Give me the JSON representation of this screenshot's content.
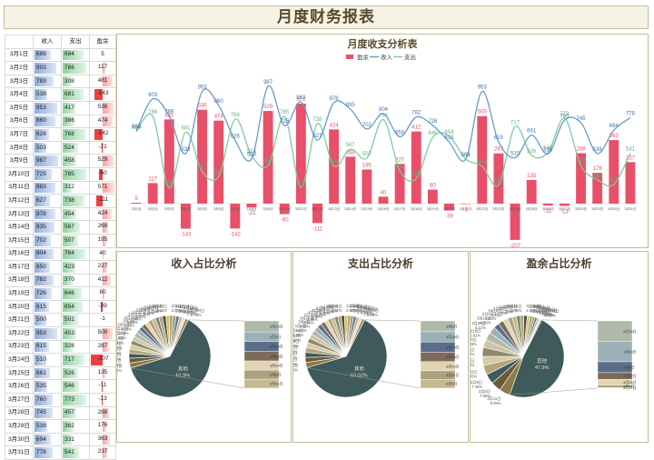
{
  "page_title": "月度财务报表",
  "table": {
    "headers": [
      "",
      "收入",
      "支出",
      "盈余"
    ],
    "rows": [
      {
        "date": "3月1日",
        "income": 689,
        "expense": 684,
        "net": 5
      },
      {
        "date": "3月2日",
        "income": 903,
        "expense": 786,
        "net": 117
      },
      {
        "date": "3月3日",
        "income": 789,
        "expense": 308,
        "net": 481
      },
      {
        "date": "3月4日",
        "income": 538,
        "expense": 681,
        "net": -143
      },
      {
        "date": "3月5日",
        "income": 953,
        "expense": 417,
        "net": 536
      },
      {
        "date": "3月6日",
        "income": 860,
        "expense": 386,
        "net": 474
      },
      {
        "date": "3月7日",
        "income": 626,
        "expense": 768,
        "net": -142
      },
      {
        "date": "3月8日",
        "income": 503,
        "expense": 524,
        "net": -21
      },
      {
        "date": "3月9日",
        "income": 987,
        "expense": 458,
        "net": 529
      },
      {
        "date": "3月10日",
        "income": 725,
        "expense": 785,
        "net": -60
      },
      {
        "date": "3月11日",
        "income": 883,
        "expense": 312,
        "net": 571
      },
      {
        "date": "3月12日",
        "income": 627,
        "expense": 738,
        "net": -111
      },
      {
        "date": "3月13日",
        "income": 878,
        "expense": 454,
        "net": 424
      },
      {
        "date": "3月14日",
        "income": 835,
        "expense": 567,
        "net": 268
      },
      {
        "date": "3月15日",
        "income": 702,
        "expense": 507,
        "net": 195
      },
      {
        "date": "3月16日",
        "income": 804,
        "expense": 764,
        "net": 40
      },
      {
        "date": "3月17日",
        "income": 650,
        "expense": 423,
        "net": 227
      },
      {
        "date": "3月18日",
        "income": 782,
        "expense": 370,
        "net": 412
      },
      {
        "date": "3月19日",
        "income": 726,
        "expense": 646,
        "net": 80
      },
      {
        "date": "3月20日",
        "income": 615,
        "expense": 654,
        "net": -39
      },
      {
        "date": "3月21日",
        "income": 500,
        "expense": 501,
        "net": -1
      },
      {
        "date": "3月22日",
        "income": 953,
        "expense": 453,
        "net": 500
      },
      {
        "date": "3月23日",
        "income": 615,
        "expense": 328,
        "net": 287
      },
      {
        "date": "3月24日",
        "income": 510,
        "expense": 717,
        "net": -207
      },
      {
        "date": "3月25日",
        "income": 661,
        "expense": 526,
        "net": 135
      },
      {
        "date": "3月26日",
        "income": 535,
        "expense": 546,
        "net": -11
      },
      {
        "date": "3月27日",
        "income": 760,
        "expense": 773,
        "net": -13
      },
      {
        "date": "3月28日",
        "income": 745,
        "expense": 457,
        "net": 288
      },
      {
        "date": "3月29日",
        "income": 538,
        "expense": 362,
        "net": 176
      },
      {
        "date": "3月30日",
        "income": 694,
        "expense": 331,
        "net": 363
      },
      {
        "date": "3月31日",
        "income": 778,
        "expense": 541,
        "net": 237
      }
    ]
  },
  "chart_data": [
    {
      "type": "bar",
      "title": "月度收支分析表",
      "legend": [
        "盈余",
        "收入",
        "支出"
      ],
      "legend_position": "top",
      "colors": {
        "net": "#e8506a",
        "income": "#6b9bc8",
        "expense": "#7fcc9f"
      },
      "categories": [
        "3月1日",
        "3月2日",
        "3月3日",
        "3月4日",
        "3月5日",
        "3月6日",
        "3月7日",
        "3月8日",
        "3月9日",
        "3月10日",
        "3月11日",
        "3月12日",
        "3月13日",
        "3月14日",
        "3月15日",
        "3月16日",
        "3月17日",
        "3月18日",
        "3月19日",
        "3月20日",
        "3月21日",
        "3月22日",
        "3月23日",
        "3月24日",
        "3月25日",
        "3月26日",
        "3月27日",
        "3月28日",
        "3月29日",
        "3月30日",
        "3月31日"
      ],
      "series": [
        {
          "name": "盈余",
          "type": "bar",
          "values": [
            5,
            117,
            481,
            -143,
            536,
            474,
            -142,
            -21,
            529,
            -60,
            571,
            -111,
            424,
            268,
            195,
            40,
            227,
            412,
            80,
            -39,
            -1,
            500,
            287,
            -207,
            135,
            -11,
            -13,
            288,
            176,
            363,
            237
          ]
        },
        {
          "name": "收入",
          "type": "line",
          "values": [
            689,
            903,
            789,
            538,
            953,
            860,
            626,
            503,
            987,
            725,
            883,
            627,
            878,
            835,
            702,
            804,
            650,
            782,
            726,
            615,
            500,
            953,
            615,
            510,
            661,
            535,
            760,
            745,
            538,
            694,
            778
          ]
        },
        {
          "name": "支出",
          "type": "line",
          "values": [
            684,
            786,
            308,
            681,
            417,
            386,
            768,
            524,
            458,
            785,
            312,
            738,
            454,
            567,
            507,
            764,
            423,
            370,
            646,
            654,
            501,
            453,
            328,
            717,
            526,
            546,
            773,
            457,
            362,
            331,
            541
          ]
        }
      ]
    },
    {
      "type": "pie",
      "title": "收入占比分析",
      "largest_slice_label": "其他",
      "largest_slice_percent": "62.9%"
    },
    {
      "type": "pie",
      "title": "支出占比分析",
      "largest_slice_label": "其他",
      "largest_slice_percent": "63.02%"
    },
    {
      "type": "pie",
      "title": "盈余占比分析",
      "largest_slice_label": "其他",
      "largest_slice_percent": "47.9%"
    }
  ],
  "pie_palette": [
    "#c4b04a",
    "#d9c27a",
    "#a8956a",
    "#8b7a4a",
    "#6e5a3a",
    "#3e5a5a",
    "#b3a57a",
    "#d6caa0",
    "#8e8a6a",
    "#cfc4a8",
    "#b0b8a8",
    "#9cb0b8",
    "#5a6e8a",
    "#7d6a5a",
    "#e0d5b0",
    "#ada080",
    "#c8b890",
    "#7c8c6c",
    "#a7a58a",
    "#5c4a3a",
    "#d0c070",
    "#b8a060",
    "#90a090",
    "#6a7a7a",
    "#c0b8a0",
    "#e8dfc0",
    "#a08870",
    "#707050",
    "#8a9aa0",
    "#b4c4c4",
    "#d8d0b8"
  ]
}
